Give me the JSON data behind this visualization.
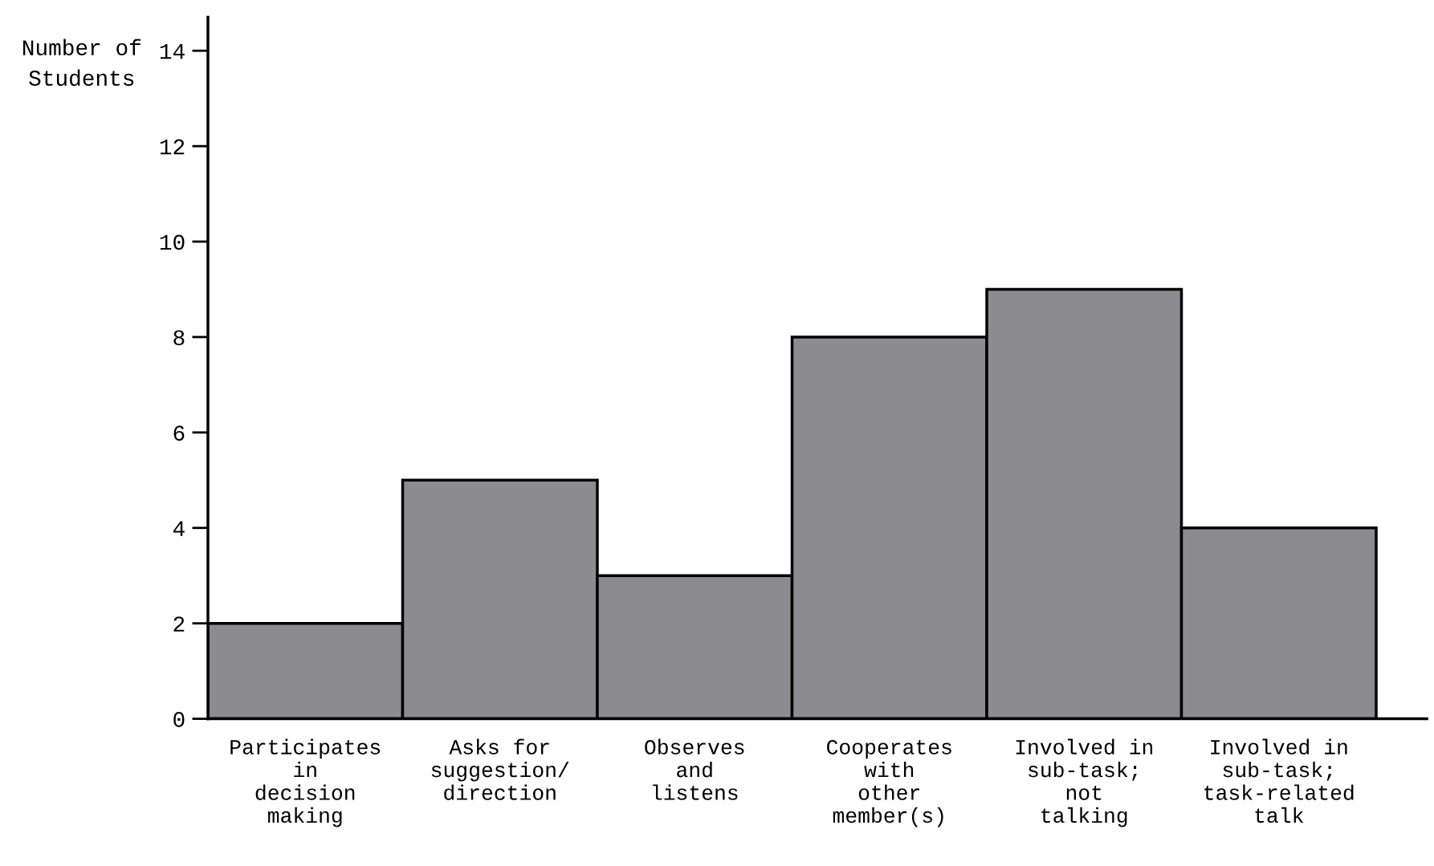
{
  "chart_data": {
    "type": "bar",
    "ylabel": "Number of\nStudents",
    "categories": [
      "Participates\nin\ndecision\nmaking",
      "Asks for\nsuggestion/\ndirection",
      "Observes\nand\nlistens",
      "Cooperates\nwith\nother\nmember(s)",
      "Involved in\nsub-task;\nnot\ntalking",
      "Involved in\nsub-task;\ntask-related\ntalk"
    ],
    "values": [
      2,
      5,
      3,
      8,
      9,
      4
    ],
    "color": "#8c8c90",
    "ylim": [
      0,
      14.7
    ],
    "yticks": [
      0,
      2,
      4,
      6,
      8,
      10,
      12,
      14
    ],
    "grid": false,
    "legend": false
  }
}
